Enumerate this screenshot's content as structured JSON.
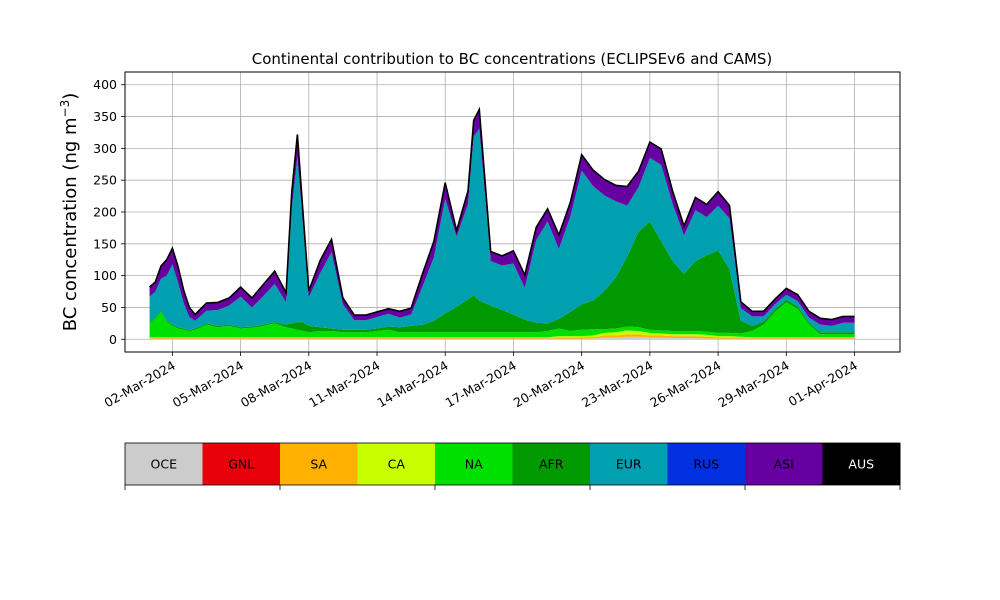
{
  "chart_data": {
    "type": "area",
    "stacked": true,
    "title": "Continental contribution to BC concentrations (ECLIPSEv6 and CAMS)",
    "ylabel_main": "BC concentration (ng m",
    "ylabel_sup": "−3",
    "ylabel_close": ")",
    "xlabel": "",
    "x_axis_type": "date",
    "xlim": [
      "2024-02-28T22:00",
      "2024-04-03T00:00"
    ],
    "ylim": [
      -20,
      420
    ],
    "grid": true,
    "yticks": [
      0,
      50,
      100,
      150,
      200,
      250,
      300,
      350,
      400
    ],
    "xticks": [
      {
        "date": "2024-03-02",
        "label": "02-Mar-2024"
      },
      {
        "date": "2024-03-05",
        "label": "05-Mar-2024"
      },
      {
        "date": "2024-03-08",
        "label": "08-Mar-2024"
      },
      {
        "date": "2024-03-11",
        "label": "11-Mar-2024"
      },
      {
        "date": "2024-03-14",
        "label": "14-Mar-2024"
      },
      {
        "date": "2024-03-17",
        "label": "17-Mar-2024"
      },
      {
        "date": "2024-03-20",
        "label": "20-Mar-2024"
      },
      {
        "date": "2024-03-23",
        "label": "23-Mar-2024"
      },
      {
        "date": "2024-03-26",
        "label": "26-Mar-2024"
      },
      {
        "date": "2024-03-29",
        "label": "29-Mar-2024"
      },
      {
        "date": "2024-04-01",
        "label": "01-Apr-2024"
      }
    ],
    "x": [
      "2024-03-01T00:00",
      "2024-03-01T06:00",
      "2024-03-01T12:00",
      "2024-03-01T18:00",
      "2024-03-02T00:00",
      "2024-03-02T06:00",
      "2024-03-02T12:00",
      "2024-03-02T18:00",
      "2024-03-03T00:00",
      "2024-03-03T12:00",
      "2024-03-04T00:00",
      "2024-03-04T12:00",
      "2024-03-05T00:00",
      "2024-03-05T12:00",
      "2024-03-06T00:00",
      "2024-03-06T12:00",
      "2024-03-07T00:00",
      "2024-03-07T06:00",
      "2024-03-07T12:00",
      "2024-03-07T18:00",
      "2024-03-08T00:00",
      "2024-03-08T12:00",
      "2024-03-09T00:00",
      "2024-03-09T12:00",
      "2024-03-10T00:00",
      "2024-03-10T12:00",
      "2024-03-11T00:00",
      "2024-03-11T12:00",
      "2024-03-12T00:00",
      "2024-03-12T12:00",
      "2024-03-13T00:00",
      "2024-03-13T12:00",
      "2024-03-14T00:00",
      "2024-03-14T12:00",
      "2024-03-15T00:00",
      "2024-03-15T06:00",
      "2024-03-15T12:00",
      "2024-03-16T00:00",
      "2024-03-16T12:00",
      "2024-03-17T00:00",
      "2024-03-17T12:00",
      "2024-03-18T00:00",
      "2024-03-18T12:00",
      "2024-03-19T00:00",
      "2024-03-19T12:00",
      "2024-03-20T00:00",
      "2024-03-20T12:00",
      "2024-03-21T00:00",
      "2024-03-21T12:00",
      "2024-03-22T00:00",
      "2024-03-22T12:00",
      "2024-03-23T00:00",
      "2024-03-23T12:00",
      "2024-03-24T00:00",
      "2024-03-24T12:00",
      "2024-03-25T00:00",
      "2024-03-25T12:00",
      "2024-03-26T00:00",
      "2024-03-26T12:00",
      "2024-03-27T00:00",
      "2024-03-27T12:00",
      "2024-03-28T00:00",
      "2024-03-28T12:00",
      "2024-03-29T00:00",
      "2024-03-29T12:00",
      "2024-03-30T00:00",
      "2024-03-30T12:00",
      "2024-03-31T00:00",
      "2024-03-31T12:00",
      "2024-04-01T00:00"
    ],
    "series": [
      {
        "name": "OCE",
        "color": "#cccccc",
        "values": [
          1,
          1,
          1,
          1,
          1,
          1,
          1,
          1,
          1,
          1,
          1,
          1,
          1,
          1,
          1,
          1,
          1,
          1,
          1,
          1,
          1,
          1,
          1,
          1,
          1,
          1,
          1,
          1,
          1,
          1,
          1,
          1,
          1,
          1,
          1,
          1,
          1,
          1,
          1,
          1,
          1,
          1,
          1,
          1,
          1,
          1,
          1,
          3,
          3,
          4,
          4,
          3,
          3,
          2,
          2,
          2,
          1,
          1,
          1,
          1,
          1,
          1,
          1,
          1,
          1,
          1,
          1,
          1,
          1,
          1
        ]
      },
      {
        "name": "GNL",
        "color": "#e8000b",
        "values": [
          0,
          0,
          0,
          0,
          0,
          0,
          0,
          0,
          0,
          0,
          0,
          0,
          0,
          0,
          0,
          0,
          0,
          0,
          0,
          0,
          0,
          0,
          0,
          0,
          0,
          0,
          0,
          0,
          0,
          0,
          0,
          0,
          0,
          0,
          0,
          0,
          0,
          0,
          0,
          0,
          0,
          0,
          0,
          0,
          0,
          0,
          0,
          0,
          0,
          0,
          0,
          0,
          0,
          0,
          0,
          0,
          0,
          0,
          0,
          0,
          0,
          0,
          0,
          0,
          0,
          0,
          0,
          0,
          0,
          0
        ]
      },
      {
        "name": "SA",
        "color": "#ffb000",
        "values": [
          1,
          1,
          1,
          1,
          1,
          1,
          1,
          1,
          1,
          1,
          1,
          1,
          1,
          1,
          1,
          1,
          1,
          1,
          1,
          1,
          1,
          1,
          1,
          1,
          1,
          1,
          1,
          1,
          1,
          1,
          1,
          1,
          1,
          1,
          1,
          1,
          1,
          1,
          1,
          1,
          1,
          1,
          1,
          2,
          2,
          2,
          2,
          3,
          3,
          4,
          4,
          3,
          3,
          3,
          3,
          3,
          3,
          2,
          2,
          2,
          1,
          1,
          1,
          1,
          1,
          1,
          1,
          1,
          1,
          1
        ]
      },
      {
        "name": "CA",
        "color": "#c8ff00",
        "values": [
          1,
          1,
          1,
          1,
          1,
          1,
          1,
          1,
          1,
          1,
          1,
          1,
          1,
          1,
          1,
          1,
          1,
          1,
          1,
          1,
          1,
          1,
          1,
          1,
          1,
          1,
          1,
          1,
          1,
          1,
          1,
          1,
          1,
          1,
          1,
          1,
          1,
          1,
          1,
          1,
          1,
          1,
          1,
          2,
          2,
          2,
          3,
          4,
          5,
          6,
          5,
          4,
          3,
          3,
          3,
          3,
          3,
          2,
          2,
          1,
          1,
          1,
          1,
          1,
          1,
          1,
          1,
          1,
          1,
          1
        ]
      },
      {
        "name": "NA",
        "color": "#00e000",
        "values": [
          22,
          30,
          40,
          25,
          18,
          14,
          12,
          10,
          12,
          20,
          16,
          18,
          14,
          15,
          18,
          22,
          16,
          14,
          12,
          10,
          8,
          10,
          10,
          8,
          8,
          8,
          10,
          12,
          8,
          8,
          8,
          8,
          8,
          8,
          8,
          8,
          8,
          8,
          8,
          8,
          8,
          8,
          10,
          12,
          8,
          10,
          10,
          6,
          6,
          6,
          6,
          5,
          5,
          5,
          5,
          5,
          5,
          5,
          5,
          5,
          10,
          20,
          40,
          55,
          45,
          20,
          5,
          5,
          5,
          5
        ]
      },
      {
        "name": "AFR",
        "color": "#009a00",
        "values": [
          2,
          2,
          2,
          2,
          2,
          2,
          2,
          2,
          2,
          2,
          2,
          2,
          2,
          2,
          2,
          2,
          4,
          8,
          12,
          14,
          10,
          6,
          4,
          4,
          4,
          4,
          4,
          5,
          8,
          10,
          12,
          18,
          30,
          40,
          52,
          58,
          50,
          42,
          35,
          28,
          20,
          15,
          12,
          15,
          30,
          40,
          45,
          60,
          80,
          110,
          150,
          170,
          140,
          110,
          90,
          110,
          120,
          130,
          100,
          20,
          8,
          5,
          4,
          4,
          4,
          3,
          3,
          3,
          3,
          3
        ]
      },
      {
        "name": "EUR",
        "color": "#00a0b0",
        "values": [
          40,
          40,
          50,
          70,
          95,
          70,
          40,
          20,
          12,
          20,
          25,
          30,
          48,
          30,
          45,
          60,
          35,
          180,
          260,
          150,
          45,
          85,
          120,
          40,
          15,
          15,
          18,
          20,
          15,
          18,
          60,
          100,
          180,
          110,
          150,
          250,
          270,
          70,
          70,
          80,
          50,
          130,
          160,
          110,
          150,
          210,
          180,
          150,
          120,
          80,
          70,
          100,
          120,
          90,
          60,
          80,
          60,
          70,
          80,
          20,
          15,
          8,
          8,
          8,
          8,
          8,
          12,
          10,
          15,
          15
        ]
      },
      {
        "name": "RUS",
        "color": "#0030e0",
        "values": [
          0,
          0,
          0,
          0,
          0,
          0,
          0,
          0,
          0,
          0,
          0,
          0,
          0,
          0,
          0,
          0,
          0,
          0,
          0,
          0,
          0,
          0,
          0,
          0,
          0,
          0,
          0,
          0,
          0,
          0,
          0,
          0,
          0,
          0,
          0,
          0,
          0,
          0,
          0,
          0,
          0,
          0,
          0,
          0,
          0,
          0,
          0,
          0,
          0,
          0,
          0,
          0,
          0,
          0,
          0,
          0,
          0,
          0,
          0,
          0,
          0,
          0,
          0,
          0,
          0,
          0,
          0,
          0,
          0,
          0
        ]
      },
      {
        "name": "ASI",
        "color": "#6600a0",
        "values": [
          15,
          15,
          20,
          25,
          25,
          25,
          20,
          15,
          10,
          12,
          12,
          12,
          15,
          15,
          18,
          20,
          15,
          25,
          35,
          20,
          10,
          20,
          20,
          10,
          8,
          8,
          8,
          8,
          10,
          10,
          20,
          25,
          25,
          10,
          20,
          25,
          30,
          15,
          15,
          20,
          20,
          20,
          20,
          22,
          22,
          25,
          25,
          25,
          25,
          30,
          25,
          25,
          25,
          20,
          15,
          20,
          20,
          22,
          20,
          10,
          8,
          8,
          8,
          10,
          10,
          10,
          10,
          10,
          10,
          10
        ]
      },
      {
        "name": "AUS",
        "color": "#000000",
        "values": [
          0,
          0,
          0,
          0,
          0,
          0,
          0,
          0,
          0,
          0,
          0,
          0,
          0,
          0,
          0,
          0,
          0,
          0,
          0,
          0,
          0,
          0,
          0,
          0,
          0,
          0,
          0,
          0,
          0,
          0,
          0,
          0,
          0,
          0,
          0,
          0,
          0,
          0,
          0,
          0,
          0,
          0,
          0,
          0,
          0,
          0,
          0,
          0,
          0,
          0,
          0,
          0,
          0,
          0,
          0,
          0,
          0,
          0,
          0,
          0,
          0,
          0,
          0,
          0,
          0,
          0,
          0,
          0,
          0,
          0
        ]
      }
    ],
    "legend": {
      "placement": "bottom",
      "entries": [
        {
          "label": "OCE",
          "color": "#cccccc",
          "text_color": "#000000"
        },
        {
          "label": "GNL",
          "color": "#e8000b",
          "text_color": "#000000"
        },
        {
          "label": "SA",
          "color": "#ffb000",
          "text_color": "#000000"
        },
        {
          "label": "CA",
          "color": "#c8ff00",
          "text_color": "#000000"
        },
        {
          "label": "NA",
          "color": "#00e000",
          "text_color": "#000000"
        },
        {
          "label": "AFR",
          "color": "#009a00",
          "text_color": "#000000"
        },
        {
          "label": "EUR",
          "color": "#00a0b0",
          "text_color": "#000000"
        },
        {
          "label": "RUS",
          "color": "#0030e0",
          "text_color": "#000000"
        },
        {
          "label": "ASI",
          "color": "#6600a0",
          "text_color": "#000000"
        },
        {
          "label": "AUS",
          "color": "#000000",
          "text_color": "#ffffff"
        }
      ]
    }
  }
}
